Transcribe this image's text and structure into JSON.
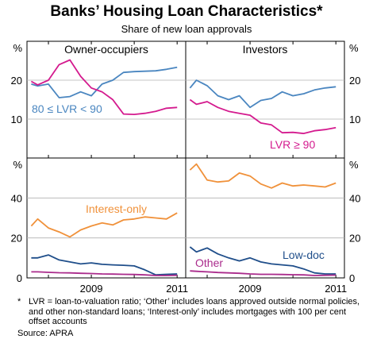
{
  "title": "Banks’ Housing Loan Characteristics*",
  "subtitle": "Share of new loan approvals",
  "colors": {
    "blue": "#4a86c0",
    "magenta": "#d41a8e",
    "orange": "#f0913a",
    "purple": "#aa2b8c",
    "navy": "#1f4e8a"
  },
  "chart_data": {
    "type": "line",
    "unit_label": "%",
    "x_tick_labels": [
      "2009",
      "2011"
    ],
    "x_range": [
      2007.5,
      2011.2
    ],
    "panels": [
      {
        "id": "owner-occupiers",
        "title": "Owner-occupiers",
        "ylim": [
          0,
          30
        ],
        "y_ticks": [
          10,
          20
        ],
        "series": [
          {
            "name": "80 ≤ LVR < 90",
            "color": "blue",
            "x": [
              2007.6,
              2007.75,
              2008.0,
              2008.25,
              2008.5,
              2008.75,
              2009.0,
              2009.25,
              2009.5,
              2009.75,
              2010.0,
              2010.25,
              2010.5,
              2010.75,
              2011.0
            ],
            "y": [
              19.0,
              18.5,
              19.0,
              15.5,
              15.8,
              17.0,
              16.0,
              19.0,
              20.0,
              22.0,
              22.2,
              22.3,
              22.4,
              22.8,
              23.3
            ]
          },
          {
            "name": "",
            "color": "magenta",
            "x": [
              2007.6,
              2007.75,
              2008.0,
              2008.25,
              2008.5,
              2008.75,
              2009.0,
              2009.25,
              2009.5,
              2009.75,
              2010.0,
              2010.25,
              2010.5,
              2010.75,
              2011.0
            ],
            "y": [
              19.7,
              18.8,
              20.0,
              24.0,
              25.2,
              21.0,
              18.0,
              17.0,
              15.0,
              11.3,
              11.2,
              11.5,
              12.0,
              12.8,
              13.0
            ]
          }
        ]
      },
      {
        "id": "investors",
        "title": "Investors",
        "ylim": [
          0,
          30
        ],
        "y_ticks": [
          10,
          20
        ],
        "series": [
          {
            "name": "",
            "color": "blue",
            "x": [
              2007.6,
              2007.75,
              2008.0,
              2008.25,
              2008.5,
              2008.75,
              2009.0,
              2009.25,
              2009.5,
              2009.75,
              2010.0,
              2010.25,
              2010.5,
              2010.75,
              2011.0
            ],
            "y": [
              18.0,
              20.0,
              18.6,
              16.0,
              15.0,
              16.0,
              13.0,
              14.8,
              15.3,
              17.0,
              16.0,
              16.5,
              17.5,
              18.0,
              18.3
            ]
          },
          {
            "name": "LVR ≥ 90",
            "color": "magenta",
            "x": [
              2007.6,
              2007.75,
              2008.0,
              2008.25,
              2008.5,
              2008.75,
              2009.0,
              2009.25,
              2009.5,
              2009.75,
              2010.0,
              2010.25,
              2010.5,
              2010.75,
              2011.0
            ],
            "y": [
              15.0,
              13.8,
              14.5,
              13.0,
              12.0,
              11.5,
              11.0,
              9.0,
              8.5,
              6.5,
              6.6,
              6.3,
              7.0,
              7.3,
              7.8
            ]
          }
        ]
      },
      {
        "id": "owner-occupiers-lower",
        "title": "",
        "ylim": [
          0,
          60
        ],
        "y_ticks": [
          0,
          20,
          40
        ],
        "series": [
          {
            "name": "Interest-only",
            "color": "orange",
            "x": [
              2007.6,
              2007.75,
              2008.0,
              2008.25,
              2008.5,
              2008.75,
              2009.0,
              2009.25,
              2009.5,
              2009.75,
              2010.0,
              2010.25,
              2010.5,
              2010.75,
              2011.0
            ],
            "y": [
              26.0,
              29.5,
              25.0,
              23.0,
              20.5,
              24.0,
              26.0,
              27.5,
              26.5,
              29.0,
              29.5,
              30.5,
              30.0,
              29.5,
              32.5
            ]
          },
          {
            "name": "",
            "color": "navy",
            "x": [
              2007.6,
              2007.75,
              2008.0,
              2008.25,
              2008.5,
              2008.75,
              2009.0,
              2009.25,
              2009.5,
              2009.75,
              2010.0,
              2010.25,
              2010.5,
              2010.75,
              2011.0
            ],
            "y": [
              10.0,
              10.0,
              11.5,
              9.0,
              8.0,
              7.0,
              7.5,
              6.8,
              6.5,
              6.3,
              6.0,
              4.0,
              1.5,
              1.8,
              2.0
            ]
          },
          {
            "name": "",
            "color": "purple",
            "x": [
              2007.6,
              2007.75,
              2008.0,
              2008.25,
              2008.5,
              2008.75,
              2009.0,
              2009.25,
              2009.5,
              2009.75,
              2010.0,
              2010.25,
              2010.5,
              2010.75,
              2011.0
            ],
            "y": [
              3.0,
              3.0,
              2.8,
              2.6,
              2.5,
              2.3,
              2.2,
              2.0,
              1.9,
              1.8,
              1.7,
              1.5,
              1.2,
              1.2,
              1.3
            ]
          }
        ]
      },
      {
        "id": "investors-lower",
        "title": "",
        "ylim": [
          0,
          60
        ],
        "y_ticks": [
          0,
          20,
          40
        ],
        "series": [
          {
            "name": "",
            "color": "orange",
            "x": [
              2007.6,
              2007.75,
              2008.0,
              2008.25,
              2008.5,
              2008.75,
              2009.0,
              2009.25,
              2009.5,
              2009.75,
              2010.0,
              2010.25,
              2010.5,
              2010.75,
              2011.0
            ],
            "y": [
              54.0,
              57.0,
              49.0,
              48.0,
              48.5,
              52.5,
              51.0,
              47.0,
              45.0,
              47.5,
              46.0,
              46.5,
              46.0,
              45.5,
              47.5
            ]
          },
          {
            "name": "Low-doc",
            "color": "navy",
            "x": [
              2007.6,
              2007.75,
              2008.0,
              2008.25,
              2008.5,
              2008.75,
              2009.0,
              2009.25,
              2009.5,
              2009.75,
              2010.0,
              2010.25,
              2010.5,
              2010.75,
              2011.0
            ],
            "y": [
              15.5,
              13.0,
              15.0,
              12.0,
              10.0,
              8.5,
              10.0,
              8.0,
              7.0,
              6.5,
              6.0,
              4.5,
              2.5,
              2.0,
              2.0
            ]
          },
          {
            "name": "Other",
            "color": "purple",
            "x": [
              2007.6,
              2007.75,
              2008.0,
              2008.25,
              2008.5,
              2008.75,
              2009.0,
              2009.25,
              2009.5,
              2009.75,
              2010.0,
              2010.25,
              2010.5,
              2010.75,
              2011.0
            ],
            "y": [
              3.5,
              3.3,
              3.0,
              2.7,
              2.5,
              2.3,
              2.0,
              1.8,
              1.8,
              1.7,
              1.6,
              1.5,
              1.2,
              1.3,
              1.4
            ]
          }
        ]
      }
    ]
  },
  "notes": {
    "star": "*",
    "text": "LVR = loan-to-valuation ratio; ‘Other’ includes loans approved outside normal policies, and other non-standard loans; ‘Interest-only’ includes mortgages with 100 per cent offset accounts",
    "source": "Source: APRA"
  }
}
